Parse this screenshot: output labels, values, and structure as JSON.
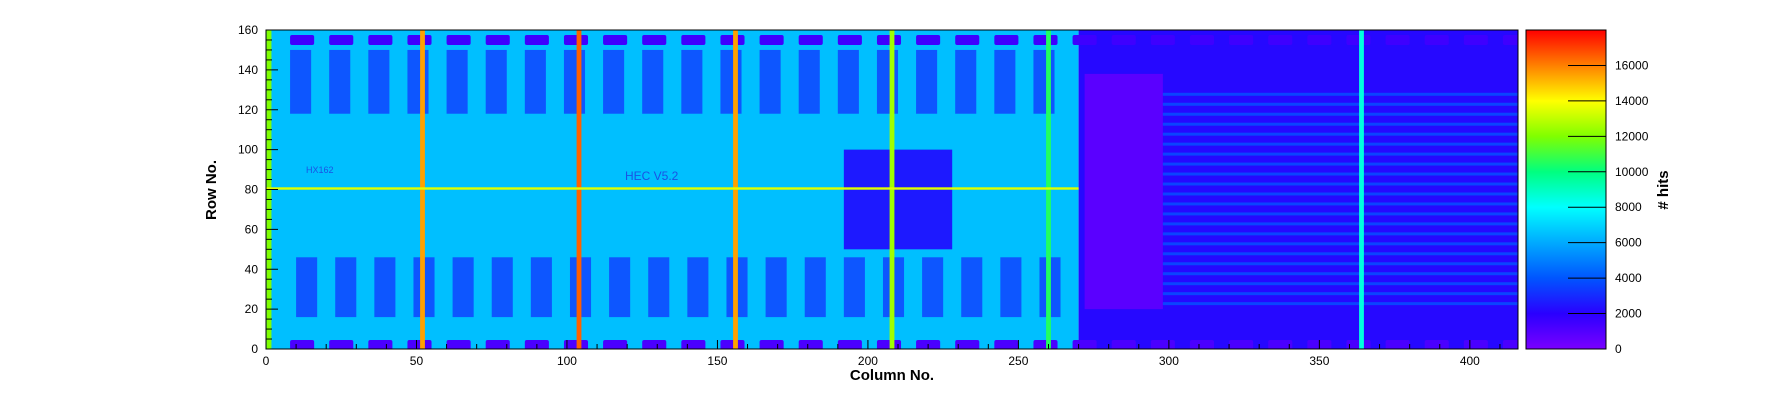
{
  "chart_data": {
    "type": "heatmap",
    "title": "",
    "xlabel": "Column No.",
    "ylabel": "Row No.",
    "zlabel": "# hits",
    "xlim": [
      0,
      416
    ],
    "ylim": [
      0,
      160
    ],
    "zlim": [
      0,
      18000
    ],
    "x_ticks": [
      0,
      50,
      100,
      150,
      200,
      250,
      300,
      350,
      400
    ],
    "y_ticks": [
      0,
      20,
      40,
      60,
      80,
      100,
      120,
      140,
      160
    ],
    "z_ticks": [
      0,
      2000,
      4000,
      6000,
      8000,
      10000,
      12000,
      14000,
      16000
    ],
    "colormap": [
      "#7a00ff",
      "#2a00ff",
      "#0055ff",
      "#00aaff",
      "#00ffff",
      "#00ff80",
      "#80ff00",
      "#ffff00",
      "#ff8000",
      "#ff0000"
    ],
    "background_level": 6500,
    "right_region_level": 2200,
    "hot_columns": [
      {
        "x": 1,
        "level": 12000
      },
      {
        "x": 52,
        "level": 15500
      },
      {
        "x": 104,
        "level": 16500
      },
      {
        "x": 156,
        "level": 15500
      },
      {
        "x": 208,
        "level": 12500
      },
      {
        "x": 260,
        "level": 10500
      },
      {
        "x": 364,
        "level": 8500
      }
    ],
    "hot_row": {
      "y": 80.5,
      "level": 13500
    },
    "pad_rows": [
      {
        "y": 155,
        "level": 1500
      },
      {
        "y": 2,
        "level": 1200
      }
    ],
    "chip_labels": [
      "HEC V5.2",
      "HX162"
    ],
    "grid": false
  }
}
